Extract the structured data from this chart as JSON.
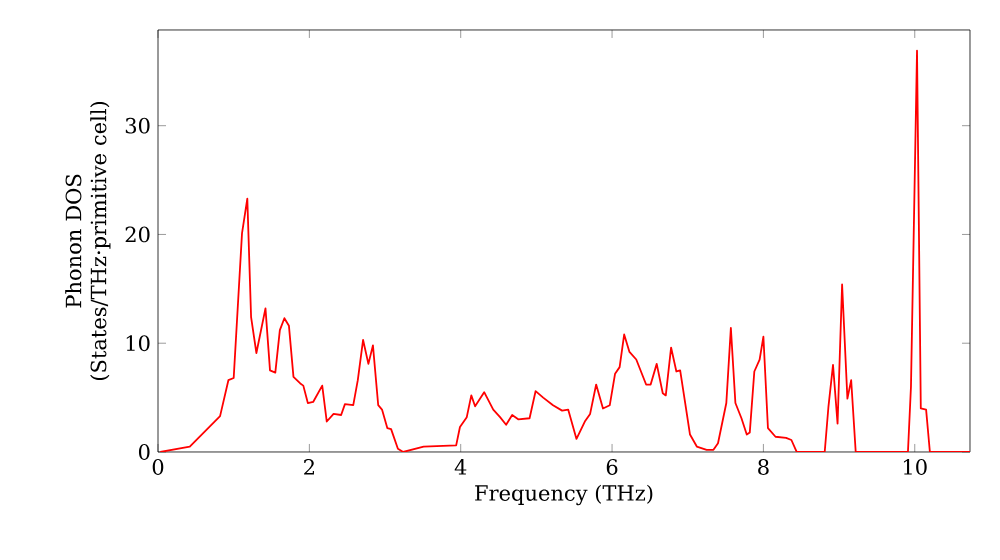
{
  "chart_data": {
    "type": "line",
    "xlabel": "Frequency (THz)",
    "ylabel": "Phonon DOS (States/THz·primitive cell)",
    "xlim": [
      0,
      10.73
    ],
    "ylim": [
      0,
      38.8
    ],
    "xticks": [
      0,
      2,
      4,
      6,
      8,
      10
    ],
    "yticks": [
      0,
      10,
      20,
      30
    ],
    "grid": false,
    "marker": "none",
    "line_style": "solid",
    "x": [
      0.03,
      0.42,
      0.82,
      0.93,
      1.0,
      1.11,
      1.18,
      1.23,
      1.3,
      1.42,
      1.48,
      1.55,
      1.61,
      1.67,
      1.73,
      1.79,
      1.88,
      1.92,
      1.98,
      2.05,
      2.17,
      2.23,
      2.32,
      2.42,
      2.47,
      2.58,
      2.64,
      2.71,
      2.78,
      2.84,
      2.91,
      2.96,
      3.03,
      3.08,
      3.17,
      3.24,
      3.51,
      3.94,
      3.99,
      4.08,
      4.14,
      4.19,
      4.31,
      4.43,
      4.52,
      4.6,
      4.68,
      4.76,
      4.91,
      4.99,
      5.09,
      5.22,
      5.34,
      5.42,
      5.53,
      5.64,
      5.71,
      5.79,
      5.88,
      5.97,
      6.04,
      6.1,
      6.16,
      6.23,
      6.32,
      6.45,
      6.51,
      6.59,
      6.67,
      6.71,
      6.78,
      6.85,
      6.9,
      6.96,
      7.03,
      7.12,
      7.25,
      7.34,
      7.4,
      7.51,
      7.57,
      7.63,
      7.71,
      7.78,
      7.82,
      7.88,
      7.95,
      8.0,
      8.06,
      8.16,
      8.3,
      8.37,
      8.44,
      8.81,
      8.86,
      8.92,
      8.98,
      9.04,
      9.11,
      9.16,
      9.22,
      9.91,
      9.95,
      10.03,
      10.08,
      10.15,
      10.2,
      10.73
    ],
    "series": [
      {
        "color": "#ff0000",
        "values": [
          0,
          0.5,
          3.3,
          6.6,
          6.8,
          20.1,
          23.3,
          12.4,
          9.1,
          13.2,
          7.5,
          7.3,
          11.2,
          12.3,
          11.6,
          6.9,
          6.3,
          6.1,
          4.5,
          4.6,
          6.1,
          2.8,
          3.5,
          3.4,
          4.4,
          4.3,
          6.6,
          10.3,
          8.1,
          9.8,
          4.3,
          3.9,
          2.2,
          2.1,
          0.3,
          0,
          0.5,
          0.6,
          2.3,
          3.2,
          5.2,
          4.2,
          5.5,
          3.9,
          3.2,
          2.5,
          3.4,
          3.0,
          3.1,
          5.6,
          5.0,
          4.3,
          3.8,
          3.9,
          1.2,
          2.8,
          3.5,
          6.2,
          4.0,
          4.3,
          7.2,
          7.8,
          10.8,
          9.2,
          8.5,
          6.2,
          6.2,
          8.1,
          5.4,
          5.2,
          9.6,
          7.4,
          7.5,
          4.8,
          1.6,
          0.5,
          0.2,
          0.2,
          0.8,
          4.5,
          11.4,
          4.5,
          3.1,
          1.6,
          1.8,
          7.4,
          8.5,
          10.6,
          2.2,
          1.4,
          1.3,
          1.1,
          0,
          0,
          4.2,
          8.0,
          2.6,
          15.4,
          4.9,
          6.6,
          0,
          0,
          6.0,
          36.9,
          4.0,
          3.9,
          0,
          0
        ]
      }
    ]
  }
}
